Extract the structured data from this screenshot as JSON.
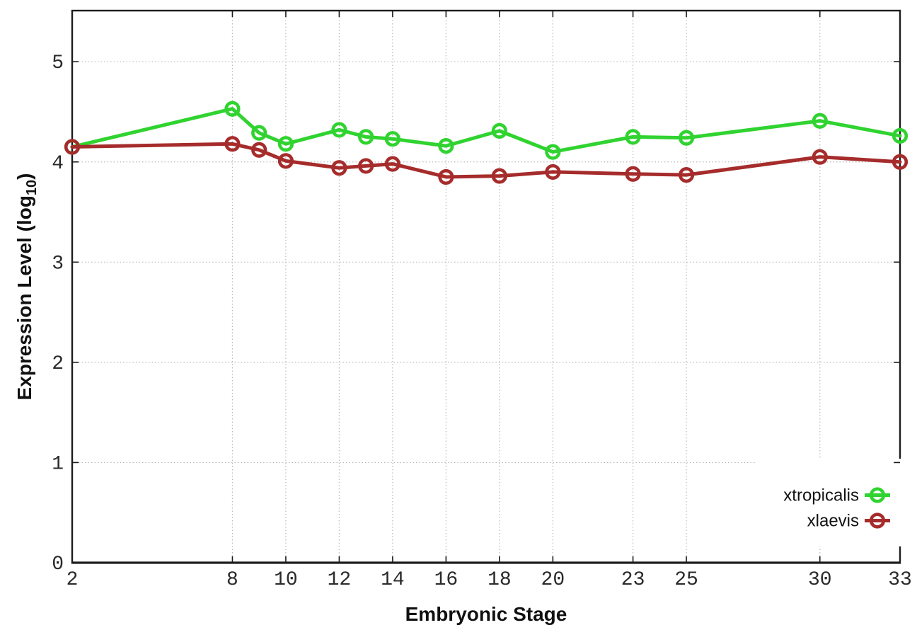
{
  "figure": {
    "background": "#ffffff"
  },
  "chart_data": {
    "type": "line",
    "title": "",
    "xlabel": "Embryonic Stage",
    "ylabel": "Expression Level (log10)",
    "ylabel_parts": {
      "main": "Expression Level (log",
      "sub": "10",
      "close": ")"
    },
    "x": [
      2,
      8,
      9,
      10,
      12,
      13,
      14,
      16,
      18,
      20,
      23,
      25,
      30,
      33
    ],
    "series": [
      {
        "name": "xtropicalis",
        "color": "#30d330",
        "values": [
          4.15,
          4.53,
          4.29,
          4.18,
          4.32,
          4.25,
          4.23,
          4.16,
          4.31,
          4.1,
          4.25,
          4.24,
          4.41,
          4.26
        ]
      },
      {
        "name": "xlaevis",
        "color": "#a62c2c",
        "values": [
          4.15,
          4.18,
          4.12,
          4.01,
          3.94,
          3.96,
          3.98,
          3.85,
          3.86,
          3.9,
          3.88,
          3.87,
          4.05,
          4.0
        ]
      }
    ],
    "xlim": [
      2,
      33
    ],
    "ylim": [
      0,
      5.51
    ],
    "xticks": [
      2,
      8,
      10,
      12,
      14,
      16,
      18,
      20,
      23,
      25,
      30,
      33
    ],
    "yticks": [
      0,
      1,
      2,
      3,
      4,
      5
    ],
    "grid": true,
    "grid_style": "dotted",
    "legend_position": "inside-bottom-right",
    "marker": "open-circle",
    "colors": {
      "axis": "#1c1c1c",
      "grid": "#b9b9b9",
      "tick_label": "#2a2a2a",
      "axis_label": "#111111",
      "legend_text": "#111111",
      "legend_box_fill": "#ffffff"
    }
  }
}
